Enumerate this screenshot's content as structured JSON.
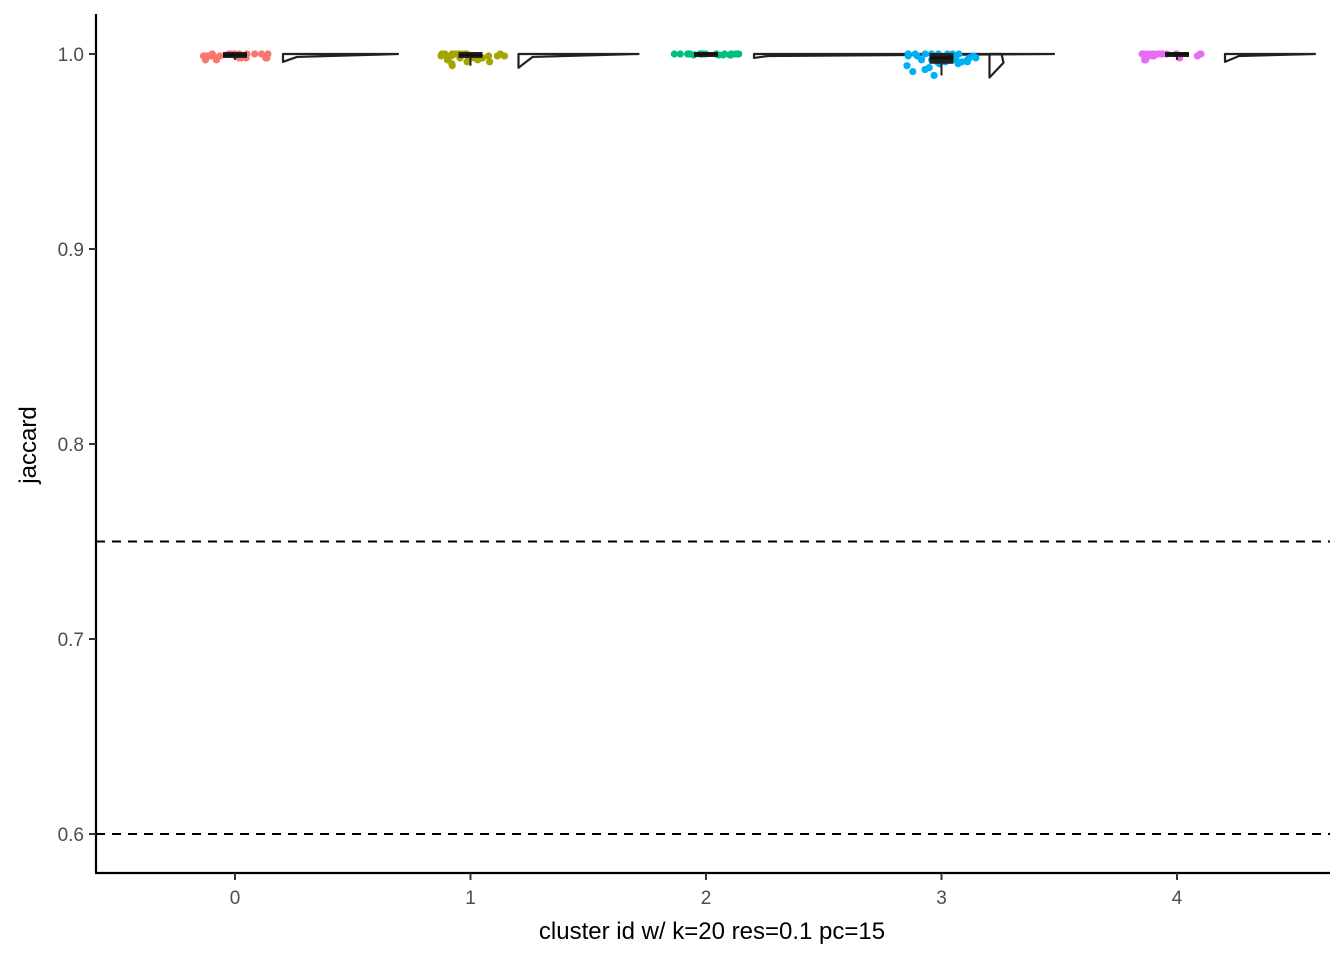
{
  "chart_data": {
    "type": "scatter",
    "subtype": "raincloud (jittered points + boxplot + half-violin)",
    "xlabel": "cluster id w/ k=20 res=0.1 pc=15",
    "ylabel": "jaccard",
    "categories": [
      "0",
      "1",
      "2",
      "3",
      "4"
    ],
    "ylim": [
      0.58,
      1.02
    ],
    "yticks": [
      0.6,
      0.7,
      0.8,
      0.9,
      1.0
    ],
    "ytick_labels": [
      "0.6",
      "0.7",
      "0.8",
      "0.9",
      "1.0"
    ],
    "reference_lines": [
      0.75,
      0.6
    ],
    "grid": false,
    "legend": "none",
    "series": [
      {
        "category": "0",
        "color": "#F8766D",
        "median": 0.9995,
        "q1": 0.999,
        "q3": 1.0,
        "min": 0.997,
        "max": 1.0,
        "points": [
          1.0,
          1.0,
          0.999,
          0.998,
          1.0,
          0.999,
          0.997,
          1.0,
          0.998,
          1.0,
          0.999,
          1.0,
          0.998,
          0.999,
          1.0,
          0.997,
          1.0,
          0.999,
          0.998,
          1.0,
          1.0,
          0.999,
          0.998,
          1.0,
          0.999,
          1.0,
          0.998,
          0.999
        ]
      },
      {
        "category": "1",
        "color": "#A3A500",
        "median": 0.9995,
        "q1": 0.999,
        "q3": 1.0,
        "min": 0.994,
        "max": 1.0,
        "points": [
          1.0,
          0.999,
          0.998,
          1.0,
          0.997,
          0.999,
          1.0,
          0.995,
          0.998,
          1.0,
          0.999,
          0.996,
          1.0,
          0.998,
          0.999,
          1.0,
          0.994,
          0.999,
          0.998,
          1.0,
          0.997,
          1.0,
          0.999,
          0.998,
          1.0,
          0.999,
          0.996,
          1.0
        ]
      },
      {
        "category": "2",
        "color": "#00BF7D",
        "median": 1.0,
        "q1": 0.9995,
        "q3": 1.0,
        "min": 0.999,
        "max": 1.0,
        "points": [
          1.0,
          1.0,
          0.9995,
          1.0,
          1.0,
          0.9995,
          1.0,
          1.0,
          1.0,
          0.9995,
          1.0,
          1.0,
          1.0,
          1.0,
          0.9995,
          1.0,
          1.0,
          1.0,
          0.9995,
          1.0,
          1.0,
          1.0
        ]
      },
      {
        "category": "3",
        "color": "#00B0F6",
        "median": 0.998,
        "q1": 0.996,
        "q3": 0.9995,
        "min": 0.989,
        "max": 1.0,
        "points": [
          1.0,
          0.998,
          0.996,
          0.999,
          0.993,
          1.0,
          0.997,
          0.989,
          0.998,
          0.995,
          1.0,
          0.999,
          0.994,
          0.997,
          1.0,
          0.996,
          0.991,
          0.998,
          1.0,
          0.997,
          0.999,
          0.995,
          1.0,
          0.996,
          0.998,
          0.992,
          1.0,
          0.999,
          0.997,
          0.998,
          1.0,
          0.996
        ]
      },
      {
        "category": "4",
        "color": "#E76BF3",
        "median": 1.0,
        "q1": 0.9995,
        "q3": 1.0,
        "min": 0.997,
        "max": 1.0,
        "points": [
          1.0,
          1.0,
          0.999,
          0.997,
          1.0,
          1.0,
          0.998,
          1.0,
          1.0,
          0.999,
          1.0,
          0.997,
          1.0,
          1.0,
          0.998,
          1.0,
          1.0,
          1.0,
          0.999,
          1.0,
          1.0,
          1.0
        ]
      }
    ]
  }
}
